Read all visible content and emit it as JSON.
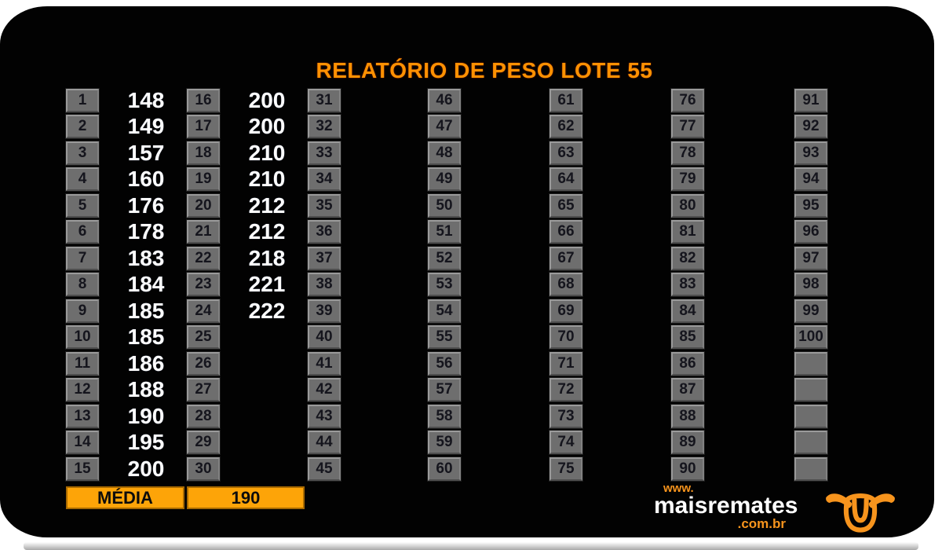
{
  "title": "RELATÓRIO DE PESO LOTE 55",
  "grid": {
    "columns": [
      {
        "cells": [
          {
            "n": "1",
            "v": "148"
          },
          {
            "n": "2",
            "v": "149"
          },
          {
            "n": "3",
            "v": "157"
          },
          {
            "n": "4",
            "v": "160"
          },
          {
            "n": "5",
            "v": "176"
          },
          {
            "n": "6",
            "v": "178"
          },
          {
            "n": "7",
            "v": "183"
          },
          {
            "n": "8",
            "v": "184"
          },
          {
            "n": "9",
            "v": "185"
          },
          {
            "n": "10",
            "v": "185"
          },
          {
            "n": "11",
            "v": "186"
          },
          {
            "n": "12",
            "v": "188"
          },
          {
            "n": "13",
            "v": "190"
          },
          {
            "n": "14",
            "v": "195"
          },
          {
            "n": "15",
            "v": "200"
          }
        ]
      },
      {
        "cells": [
          {
            "n": "16",
            "v": "200"
          },
          {
            "n": "17",
            "v": "200"
          },
          {
            "n": "18",
            "v": "210"
          },
          {
            "n": "19",
            "v": "210"
          },
          {
            "n": "20",
            "v": "212"
          },
          {
            "n": "21",
            "v": "212"
          },
          {
            "n": "22",
            "v": "218"
          },
          {
            "n": "23",
            "v": "221"
          },
          {
            "n": "24",
            "v": "222"
          },
          {
            "n": "25",
            "v": ""
          },
          {
            "n": "26",
            "v": ""
          },
          {
            "n": "27",
            "v": ""
          },
          {
            "n": "28",
            "v": ""
          },
          {
            "n": "29",
            "v": ""
          },
          {
            "n": "30",
            "v": ""
          }
        ]
      },
      {
        "cells": [
          {
            "n": "31",
            "v": ""
          },
          {
            "n": "32",
            "v": ""
          },
          {
            "n": "33",
            "v": ""
          },
          {
            "n": "34",
            "v": ""
          },
          {
            "n": "35",
            "v": ""
          },
          {
            "n": "36",
            "v": ""
          },
          {
            "n": "37",
            "v": ""
          },
          {
            "n": "38",
            "v": ""
          },
          {
            "n": "39",
            "v": ""
          },
          {
            "n": "40",
            "v": ""
          },
          {
            "n": "41",
            "v": ""
          },
          {
            "n": "42",
            "v": ""
          },
          {
            "n": "43",
            "v": ""
          },
          {
            "n": "44",
            "v": ""
          },
          {
            "n": "45",
            "v": ""
          }
        ]
      },
      {
        "cells": [
          {
            "n": "46",
            "v": ""
          },
          {
            "n": "47",
            "v": ""
          },
          {
            "n": "48",
            "v": ""
          },
          {
            "n": "49",
            "v": ""
          },
          {
            "n": "50",
            "v": ""
          },
          {
            "n": "51",
            "v": ""
          },
          {
            "n": "52",
            "v": ""
          },
          {
            "n": "53",
            "v": ""
          },
          {
            "n": "54",
            "v": ""
          },
          {
            "n": "55",
            "v": ""
          },
          {
            "n": "56",
            "v": ""
          },
          {
            "n": "57",
            "v": ""
          },
          {
            "n": "58",
            "v": ""
          },
          {
            "n": "59",
            "v": ""
          },
          {
            "n": "60",
            "v": ""
          }
        ]
      },
      {
        "cells": [
          {
            "n": "61",
            "v": ""
          },
          {
            "n": "62",
            "v": ""
          },
          {
            "n": "63",
            "v": ""
          },
          {
            "n": "64",
            "v": ""
          },
          {
            "n": "65",
            "v": ""
          },
          {
            "n": "66",
            "v": ""
          },
          {
            "n": "67",
            "v": ""
          },
          {
            "n": "68",
            "v": ""
          },
          {
            "n": "69",
            "v": ""
          },
          {
            "n": "70",
            "v": ""
          },
          {
            "n": "71",
            "v": ""
          },
          {
            "n": "72",
            "v": ""
          },
          {
            "n": "73",
            "v": ""
          },
          {
            "n": "74",
            "v": ""
          },
          {
            "n": "75",
            "v": ""
          }
        ]
      },
      {
        "cells": [
          {
            "n": "76",
            "v": ""
          },
          {
            "n": "77",
            "v": ""
          },
          {
            "n": "78",
            "v": ""
          },
          {
            "n": "79",
            "v": ""
          },
          {
            "n": "80",
            "v": ""
          },
          {
            "n": "81",
            "v": ""
          },
          {
            "n": "82",
            "v": ""
          },
          {
            "n": "83",
            "v": ""
          },
          {
            "n": "84",
            "v": ""
          },
          {
            "n": "85",
            "v": ""
          },
          {
            "n": "86",
            "v": ""
          },
          {
            "n": "87",
            "v": ""
          },
          {
            "n": "88",
            "v": ""
          },
          {
            "n": "89",
            "v": ""
          },
          {
            "n": "90",
            "v": ""
          }
        ]
      },
      {
        "cells": [
          {
            "n": "91",
            "v": ""
          },
          {
            "n": "92",
            "v": ""
          },
          {
            "n": "93",
            "v": ""
          },
          {
            "n": "94",
            "v": ""
          },
          {
            "n": "95",
            "v": ""
          },
          {
            "n": "96",
            "v": ""
          },
          {
            "n": "97",
            "v": ""
          },
          {
            "n": "98",
            "v": ""
          },
          {
            "n": "99",
            "v": ""
          },
          {
            "n": "100",
            "v": ""
          },
          {
            "n": "",
            "v": ""
          },
          {
            "n": "",
            "v": ""
          },
          {
            "n": "",
            "v": ""
          },
          {
            "n": "",
            "v": ""
          },
          {
            "n": "",
            "v": ""
          }
        ]
      }
    ]
  },
  "summary": {
    "label": "MÉDIA",
    "value": "190"
  },
  "logo": {
    "www": "www.",
    "name": "maisremates",
    "tld": ".com.br",
    "icon": "bull-head-icon"
  },
  "colors": {
    "title_orange": "#FF9102",
    "bar_orange": "#FDA408",
    "cell_gray": "#6E6E6E",
    "logo_orange": "#F7941D",
    "background": "#020202"
  }
}
